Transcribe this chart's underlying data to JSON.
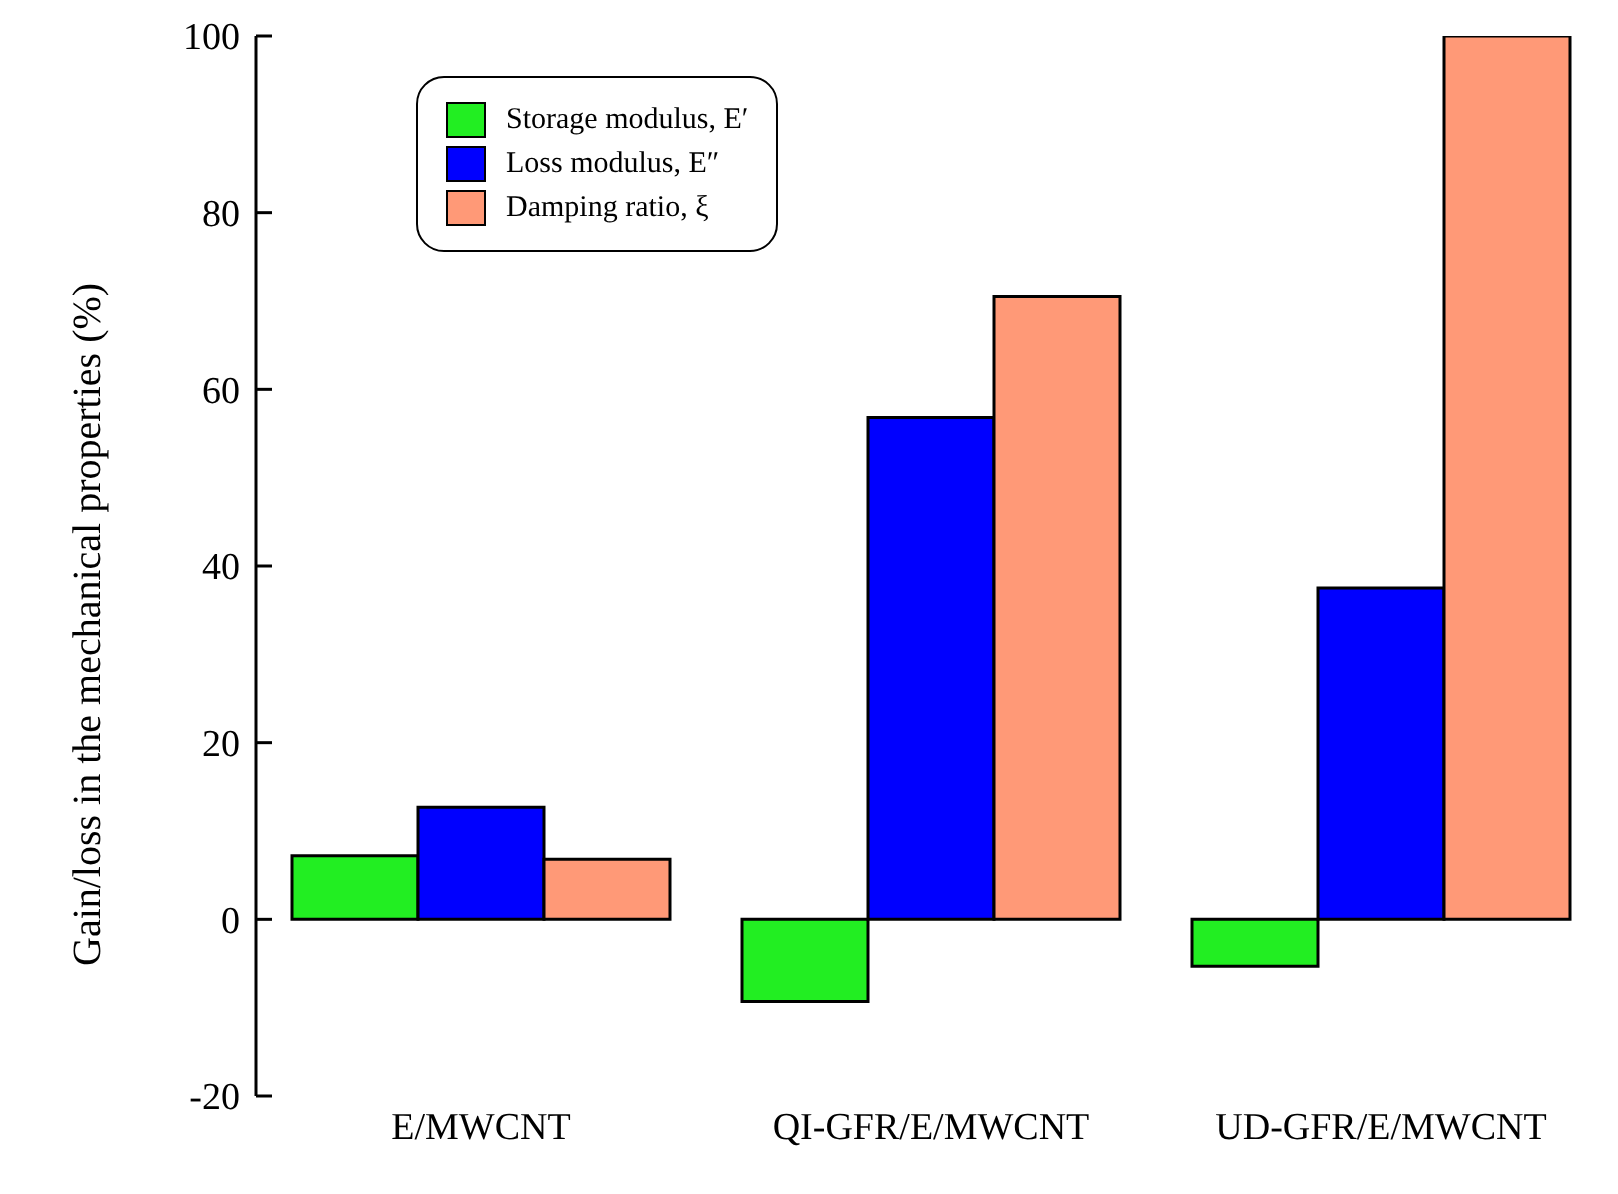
{
  "chart_data": {
    "type": "bar",
    "ylabel": "Gain/loss in the mechanical properties (%)",
    "categories": [
      "E/MWCNT",
      "QI-GFR/E/MWCNT",
      "UD-GFR/E/MWCNT"
    ],
    "series": [
      {
        "name": "Storage modulus, E′",
        "color": "#22ee22",
        "values": [
          7.2,
          -9.3,
          -5.3
        ]
      },
      {
        "name": "Loss modulus, E″",
        "color": "#0000ff",
        "values": [
          12.7,
          56.8,
          37.5
        ]
      },
      {
        "name": "Damping ratio, ξ",
        "color": "#ff9977",
        "values": [
          6.8,
          70.5,
          100
        ]
      }
    ],
    "ylim": [
      -20,
      100
    ],
    "yticks": [
      -20,
      0,
      20,
      40,
      60,
      80,
      100
    ],
    "grid": false,
    "legend": "top left"
  }
}
